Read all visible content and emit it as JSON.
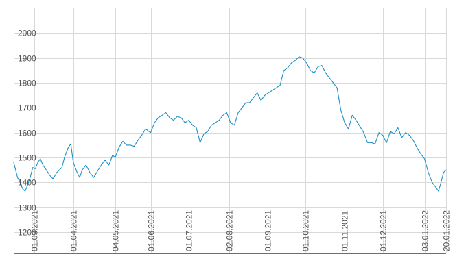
{
  "colors": {
    "line": "#1b8ec4",
    "grid": "#d9d9d9",
    "axis": "#6e6e6e",
    "tick_text": "#555555",
    "background": "#ffffff"
  },
  "chart_data": {
    "type": "line",
    "title": "",
    "xlabel": "",
    "ylabel": "",
    "grid": true,
    "legend": "none",
    "ylim": [
      1115,
      2100
    ],
    "y_ticks": [
      1200,
      1300,
      1400,
      1500,
      1600,
      1700,
      1800,
      1900,
      2000
    ],
    "x_range": [
      "2021-02-13",
      "2022-01-20"
    ],
    "x_ticks": [
      {
        "date": "2021-03-01",
        "label": "01.03.2021"
      },
      {
        "date": "2021-04-01",
        "label": "01.04.2021"
      },
      {
        "date": "2021-05-04",
        "label": "04.05.2021"
      },
      {
        "date": "2021-06-01",
        "label": "01.06.2021"
      },
      {
        "date": "2021-07-01",
        "label": "01.07.2021"
      },
      {
        "date": "2021-08-02",
        "label": "02.08.2021"
      },
      {
        "date": "2021-09-01",
        "label": "01.09.2021"
      },
      {
        "date": "2021-10-01",
        "label": "01.10.2021"
      },
      {
        "date": "2021-11-01",
        "label": "01.11.2021"
      },
      {
        "date": "2021-12-01",
        "label": "01.12.2021"
      },
      {
        "date": "2022-01-03",
        "label": "03.01.2022"
      },
      {
        "date": "2022-01-20",
        "label": "20.01.2022"
      }
    ],
    "series": [
      {
        "x": [
          "2021-02-13",
          "2021-02-16",
          "2021-02-18",
          "2021-02-20",
          "2021-02-22",
          "2021-02-24",
          "2021-02-26",
          "2021-02-28",
          "2021-03-02",
          "2021-03-04",
          "2021-03-06",
          "2021-03-08",
          "2021-03-10",
          "2021-03-12",
          "2021-03-14",
          "2021-03-16",
          "2021-03-19",
          "2021-03-21",
          "2021-03-23",
          "2021-03-25",
          "2021-03-28",
          "2021-03-30",
          "2021-04-01",
          "2021-04-04",
          "2021-04-06",
          "2021-04-08",
          "2021-04-11",
          "2021-04-14",
          "2021-04-17",
          "2021-04-20",
          "2021-04-23",
          "2021-04-26",
          "2021-04-29",
          "2021-05-02",
          "2021-05-04",
          "2021-05-07",
          "2021-05-10",
          "2021-05-13",
          "2021-05-16",
          "2021-05-19",
          "2021-05-22",
          "2021-05-25",
          "2021-05-28",
          "2021-06-01",
          "2021-06-04",
          "2021-06-07",
          "2021-06-10",
          "2021-06-13",
          "2021-06-16",
          "2021-06-19",
          "2021-06-22",
          "2021-06-25",
          "2021-06-28",
          "2021-07-01",
          "2021-07-04",
          "2021-07-07",
          "2021-07-10",
          "2021-07-13",
          "2021-07-16",
          "2021-07-19",
          "2021-07-22",
          "2021-07-25",
          "2021-07-28",
          "2021-07-31",
          "2021-08-03",
          "2021-08-06",
          "2021-08-09",
          "2021-08-12",
          "2021-08-15",
          "2021-08-18",
          "2021-08-21",
          "2021-08-24",
          "2021-08-27",
          "2021-08-30",
          "2021-09-02",
          "2021-09-05",
          "2021-09-08",
          "2021-09-11",
          "2021-09-14",
          "2021-09-17",
          "2021-09-20",
          "2021-09-23",
          "2021-09-26",
          "2021-09-29",
          "2021-10-02",
          "2021-10-05",
          "2021-10-08",
          "2021-10-11",
          "2021-10-14",
          "2021-10-17",
          "2021-10-20",
          "2021-10-23",
          "2021-10-26",
          "2021-10-29",
          "2021-11-01",
          "2021-11-04",
          "2021-11-07",
          "2021-11-10",
          "2021-11-13",
          "2021-11-16",
          "2021-11-19",
          "2021-11-22",
          "2021-11-25",
          "2021-11-28",
          "2021-12-01",
          "2021-12-04",
          "2021-12-07",
          "2021-12-10",
          "2021-12-13",
          "2021-12-16",
          "2021-12-19",
          "2021-12-22",
          "2021-12-25",
          "2021-12-28",
          "2021-12-31",
          "2022-01-03",
          "2022-01-06",
          "2022-01-09",
          "2022-01-12",
          "2022-01-14",
          "2022-01-16",
          "2022-01-18",
          "2022-01-20"
        ],
        "values": [
          1480,
          1420,
          1400,
          1375,
          1365,
          1390,
          1420,
          1460,
          1455,
          1480,
          1495,
          1470,
          1455,
          1440,
          1425,
          1415,
          1440,
          1450,
          1460,
          1500,
          1540,
          1555,
          1480,
          1440,
          1420,
          1450,
          1470,
          1440,
          1420,
          1445,
          1470,
          1490,
          1470,
          1510,
          1500,
          1540,
          1565,
          1550,
          1550,
          1545,
          1570,
          1590,
          1615,
          1600,
          1640,
          1660,
          1670,
          1680,
          1660,
          1650,
          1665,
          1660,
          1640,
          1650,
          1630,
          1620,
          1560,
          1595,
          1605,
          1630,
          1640,
          1650,
          1670,
          1680,
          1640,
          1630,
          1680,
          1700,
          1720,
          1720,
          1740,
          1760,
          1730,
          1750,
          1760,
          1770,
          1780,
          1790,
          1850,
          1860,
          1880,
          1890,
          1905,
          1900,
          1880,
          1850,
          1840,
          1865,
          1870,
          1840,
          1820,
          1800,
          1780,
          1690,
          1640,
          1615,
          1670,
          1650,
          1625,
          1600,
          1560,
          1560,
          1555,
          1600,
          1590,
          1560,
          1605,
          1595,
          1620,
          1580,
          1600,
          1590,
          1570,
          1540,
          1515,
          1495,
          1440,
          1400,
          1380,
          1365,
          1400,
          1440,
          1450
        ]
      }
    ]
  }
}
